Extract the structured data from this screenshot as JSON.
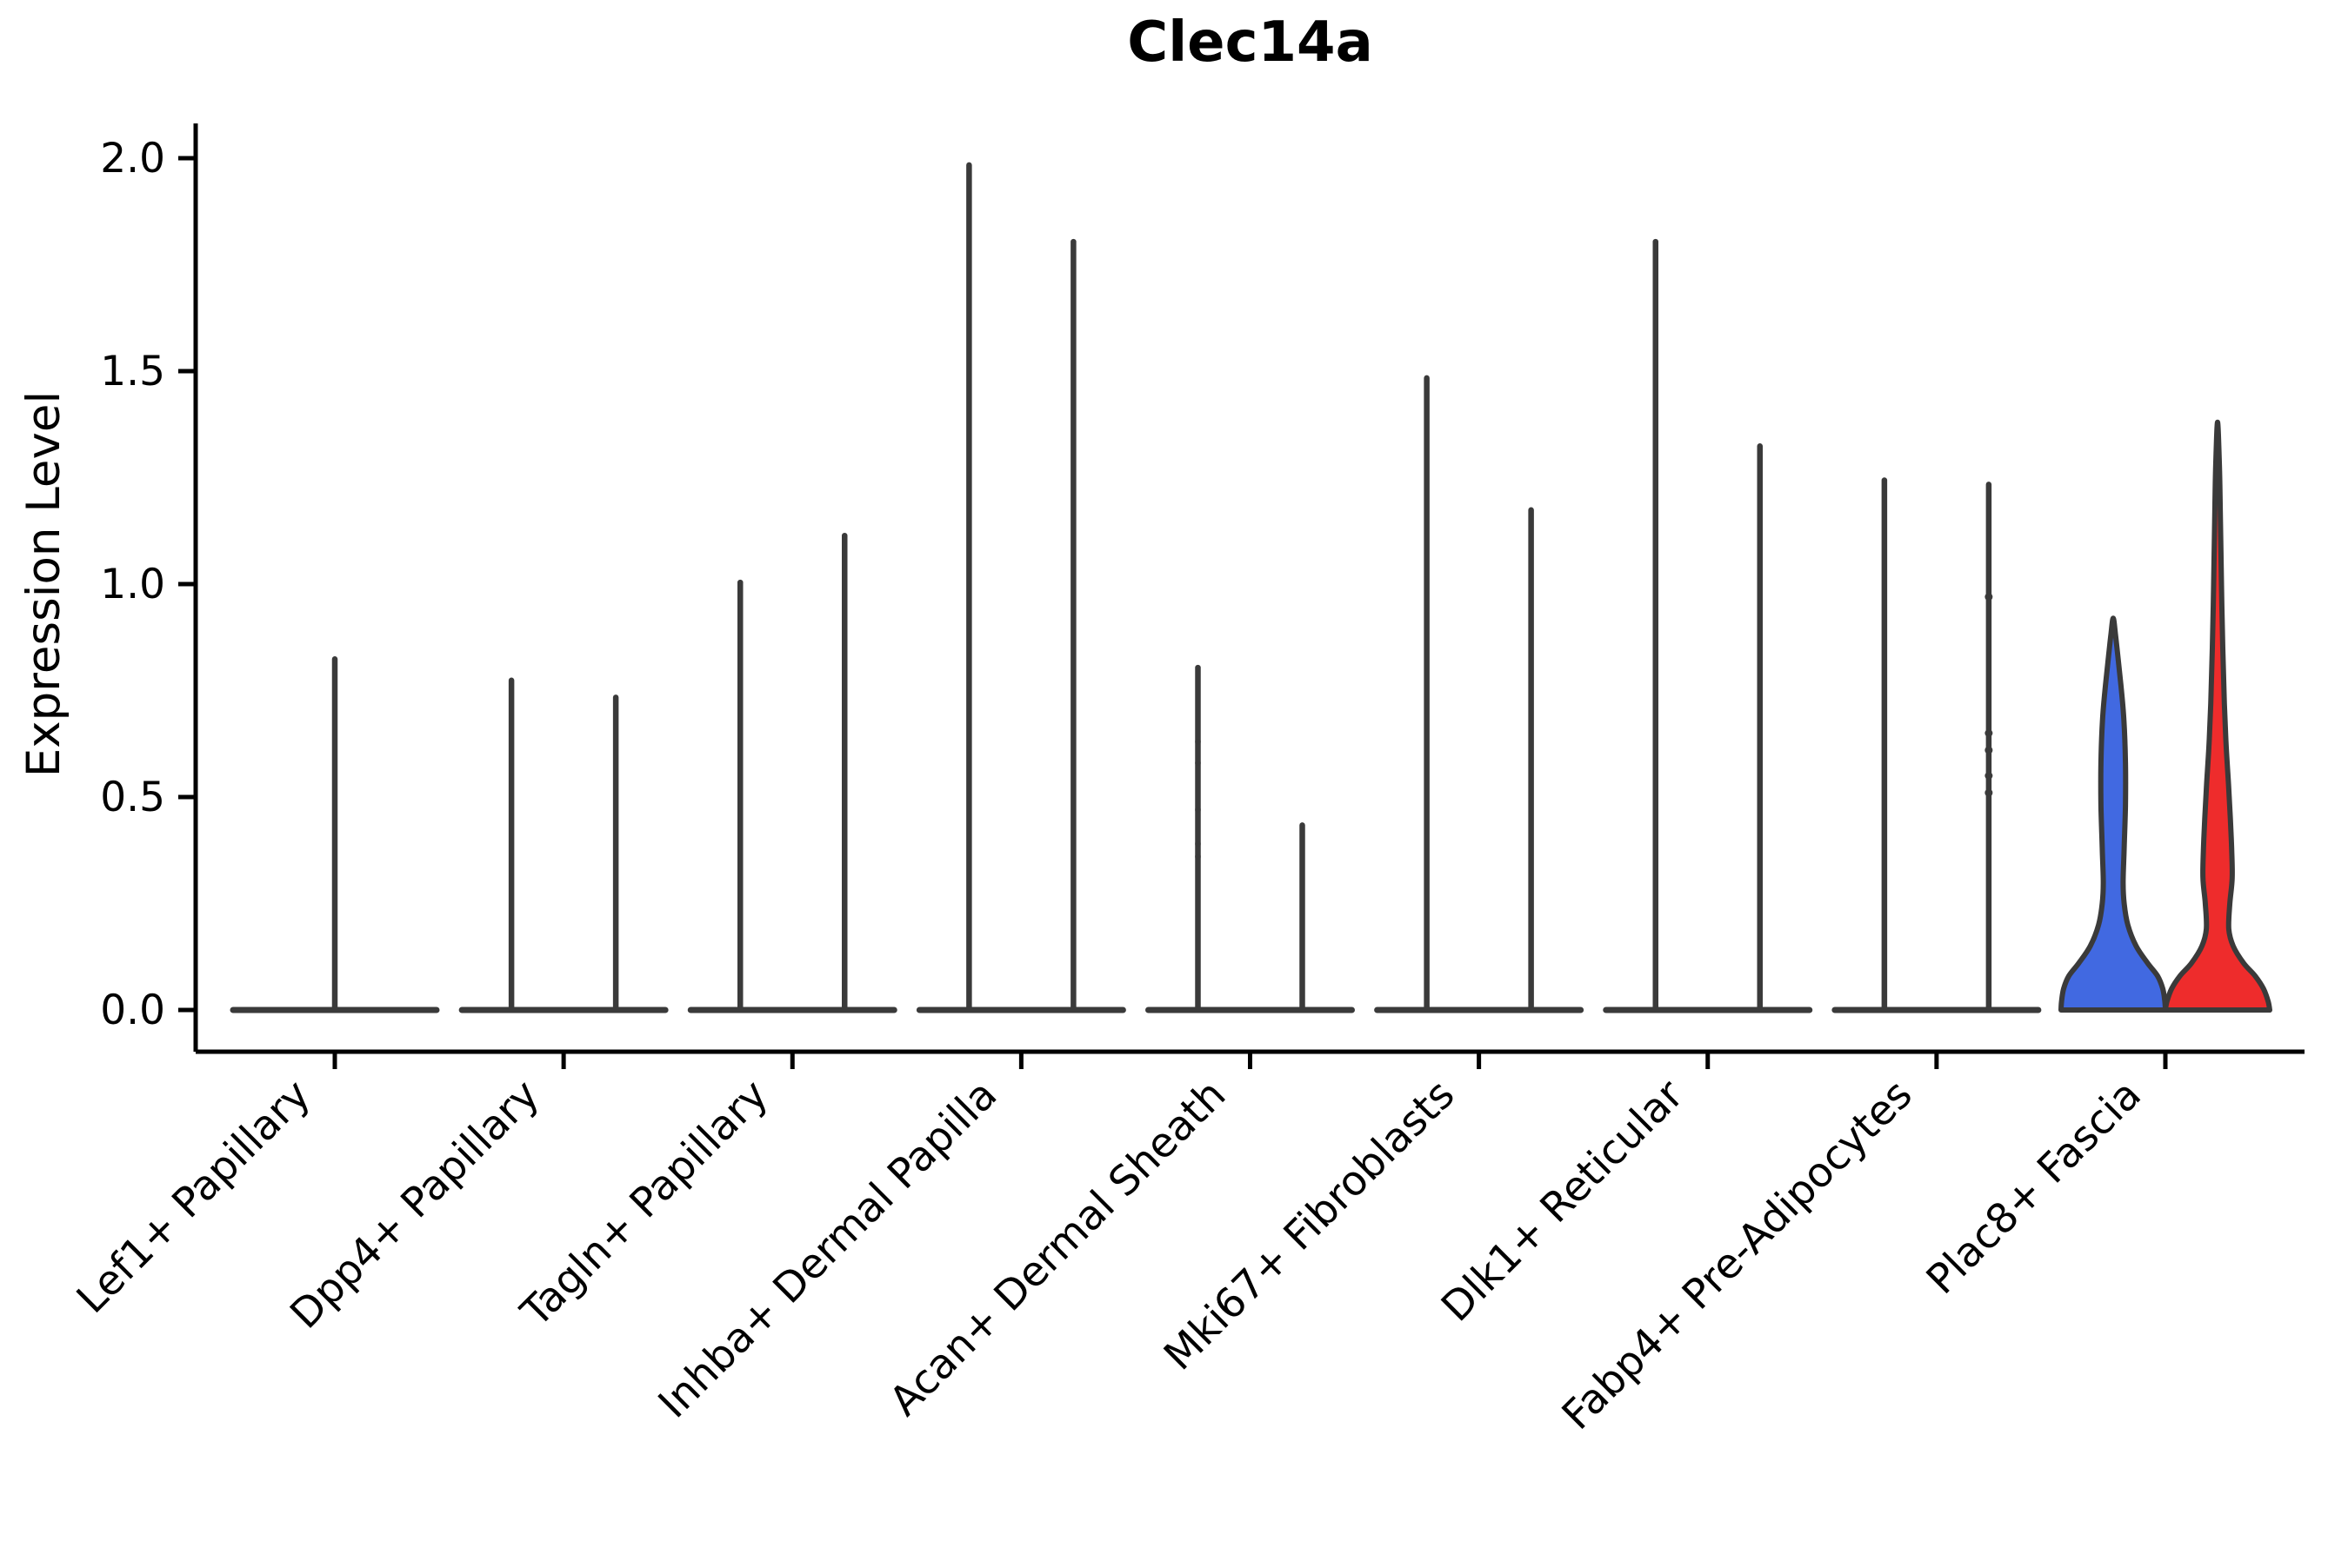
{
  "style": {
    "background": "#FFFFFF",
    "edge_color": "#3A3A3A",
    "axis_color": "#000000",
    "blue_fill": "#4169E1",
    "red_fill": "#EE2C2C"
  },
  "chart_data": {
    "type": "violin",
    "title": "Clec14a",
    "ylabel": "Expression Level",
    "ylim": [
      0,
      2.05
    ],
    "ytick_labels": [
      "0.0",
      "0.5",
      "1.0",
      "1.5",
      "2.0"
    ],
    "ytick_values": [
      0,
      0.5,
      1.0,
      1.5,
      2.0
    ],
    "legend": "none",
    "grid": false,
    "categories": [
      "Lef1+ Papillary",
      "Dpp4+ Papillary",
      "Tagln+ Papillary",
      "Inhba+ Dermal Papilla",
      "Acan+ Dermal Sheath",
      "Mki67+ Fibroblasts",
      "Dlk1+ Reticular",
      "Fabp4+ Pre-Adipocytes",
      "Plac8+ Fascia"
    ],
    "violins": [
      {
        "category": "Lef1+ Papillary",
        "splits": [
          {
            "style": "spike",
            "max": 0.83,
            "span": "full"
          }
        ]
      },
      {
        "category": "Dpp4+ Papillary",
        "splits": [
          {
            "style": "spike",
            "max": 0.78
          },
          {
            "style": "spike",
            "max": 0.74
          }
        ]
      },
      {
        "category": "Tagln+ Papillary",
        "splits": [
          {
            "style": "spike",
            "max": 1.01
          },
          {
            "style": "spike",
            "max": 1.12
          }
        ]
      },
      {
        "category": "Inhba+ Dermal Papilla",
        "splits": [
          {
            "style": "spike",
            "max": 1.99
          },
          {
            "style": "spike",
            "max": 1.81
          }
        ]
      },
      {
        "category": "Acan+ Dermal Sheath",
        "splits": [
          {
            "style": "spike",
            "max": 0.81,
            "faint_points": [
              0.63,
              0.58,
              0.47,
              0.39,
              0.36
            ]
          },
          {
            "style": "spike",
            "max": 0.44
          }
        ]
      },
      {
        "category": "Mki67+ Fibroblasts",
        "splits": [
          {
            "style": "spike",
            "max": 1.49
          },
          {
            "style": "spike",
            "max": 1.18
          }
        ]
      },
      {
        "category": "Dlk1+ Reticular",
        "splits": [
          {
            "style": "spike",
            "max": 1.81
          },
          {
            "style": "spike",
            "max": 1.33
          }
        ]
      },
      {
        "category": "Fabp4+ Pre-Adipocytes",
        "splits": [
          {
            "style": "spike",
            "max": 1.25
          },
          {
            "style": "spike",
            "max": 1.24,
            "points": [
              0.97,
              0.65,
              0.61,
              0.55,
              0.51
            ]
          }
        ]
      },
      {
        "category": "Plac8+ Fascia",
        "splits": [
          {
            "style": "shaped",
            "fill": "blue_fill",
            "max": 0.92,
            "profile": [
              [
                0.0,
                1.0
              ],
              [
                0.02,
                0.99
              ],
              [
                0.05,
                0.95
              ],
              [
                0.08,
                0.85
              ],
              [
                0.11,
                0.66
              ],
              [
                0.15,
                0.44
              ],
              [
                0.2,
                0.28
              ],
              [
                0.25,
                0.21
              ],
              [
                0.3,
                0.19
              ],
              [
                0.38,
                0.21
              ],
              [
                0.48,
                0.235
              ],
              [
                0.58,
                0.235
              ],
              [
                0.68,
                0.205
              ],
              [
                0.76,
                0.15
              ],
              [
                0.83,
                0.09
              ],
              [
                0.88,
                0.045
              ],
              [
                0.92,
                0.0
              ]
            ]
          },
          {
            "style": "shaped",
            "fill": "red_fill",
            "max": 1.38,
            "profile": [
              [
                0.0,
                1.0
              ],
              [
                0.02,
                0.97
              ],
              [
                0.05,
                0.88
              ],
              [
                0.08,
                0.72
              ],
              [
                0.11,
                0.5
              ],
              [
                0.15,
                0.3
              ],
              [
                0.19,
                0.215
              ],
              [
                0.25,
                0.235
              ],
              [
                0.31,
                0.28
              ],
              [
                0.38,
                0.27
              ],
              [
                0.45,
                0.245
              ],
              [
                0.53,
                0.21
              ],
              [
                0.62,
                0.165
              ],
              [
                0.72,
                0.13
              ],
              [
                0.85,
                0.1
              ],
              [
                1.0,
                0.075
              ],
              [
                1.15,
                0.055
              ],
              [
                1.28,
                0.035
              ],
              [
                1.38,
                0.0
              ]
            ]
          }
        ]
      }
    ]
  }
}
